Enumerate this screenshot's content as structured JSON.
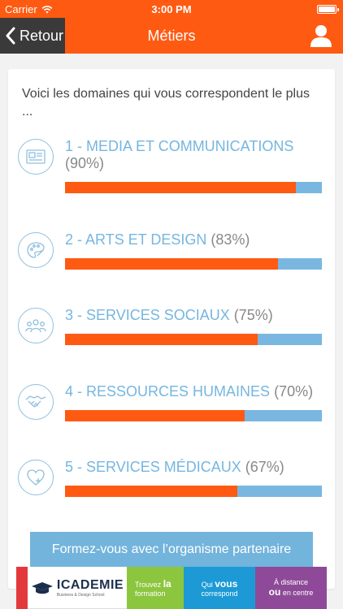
{
  "status": {
    "carrier": "Carrier",
    "time": "3:00 PM"
  },
  "nav": {
    "back_label": "Retour",
    "title": "Métiers"
  },
  "intro": "Voici les domaines qui vous correspondent le plus ...",
  "domains": [
    {
      "label": "1 - MEDIA ET COMMUNICATIONS",
      "percent": "(90%)",
      "value": 0.9,
      "icon": "newspaper-icon"
    },
    {
      "label": "2 - ARTS ET DESIGN",
      "percent": "(83%)",
      "value": 0.83,
      "icon": "palette-icon"
    },
    {
      "label": "3 - SERVICES SOCIAUX",
      "percent": "(75%)",
      "value": 0.75,
      "icon": "people-group-icon"
    },
    {
      "label": "4 - RESSOURCES HUMAINES",
      "percent": "(70%)",
      "value": 0.7,
      "icon": "handshake-icon"
    },
    {
      "label": "5 - SERVICES MÉDICAUX",
      "percent": "(67%)",
      "value": 0.67,
      "icon": "heart-plus-icon"
    }
  ],
  "partner_button": "Formez-vous avec l’organisme partenaire",
  "banner": {
    "brand": "ICADEMIE",
    "brand_sub": "Business & Design School",
    "seg_green_line1": "Trouvez",
    "seg_green_strong": "la",
    "seg_green_line2": "formation",
    "seg_blue_line1": "Qui",
    "seg_blue_strong": "vous",
    "seg_blue_line2": "correspond",
    "seg_purple_line1": "À distance",
    "seg_purple_strong": "ou",
    "seg_purple_line2": "en centre"
  },
  "colors": {
    "accent": "#ff5a12",
    "secondary": "#76b6df",
    "nav_back": "#3a3a3a"
  }
}
